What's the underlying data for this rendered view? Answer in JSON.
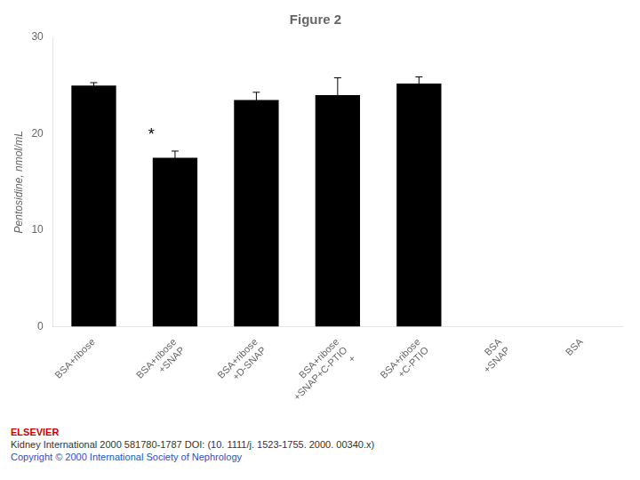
{
  "chart_data": {
    "type": "bar",
    "title": "Figure 2",
    "y_label": "Pentosidine, nmol/mL",
    "categories": [
      "BSA+ribose",
      "BSA+ribose\n+SNAP",
      "BSA+ribose\n+D-SNAP",
      "BSA+ribose\n+SNAP+C-PTIO\n+",
      "BSA+ribose\n+C-PTIO",
      "BSA\n+SNAP",
      "BSA"
    ],
    "values": [
      25.0,
      17.5,
      23.5,
      24.0,
      25.2,
      0,
      0
    ],
    "errors": [
      0.3,
      0.7,
      0.8,
      1.8,
      0.7,
      0,
      0
    ],
    "color": "#000000",
    "ylim": [
      0,
      30
    ],
    "yticks": [
      0,
      10,
      20,
      30
    ],
    "grid": false,
    "annotations": [
      {
        "text": "*",
        "category_index": 1,
        "y": 19.0
      },
      {
        "text": "ELSEVIER"
      },
      {
        "text": "Kidney International 2000 581780-1787 DOI: (10. 1111/j. 1523-1755. 2000. 00340.x)"
      },
      {
        "text": "Copyright © 2000  International Society of Nephrology"
      }
    ]
  }
}
